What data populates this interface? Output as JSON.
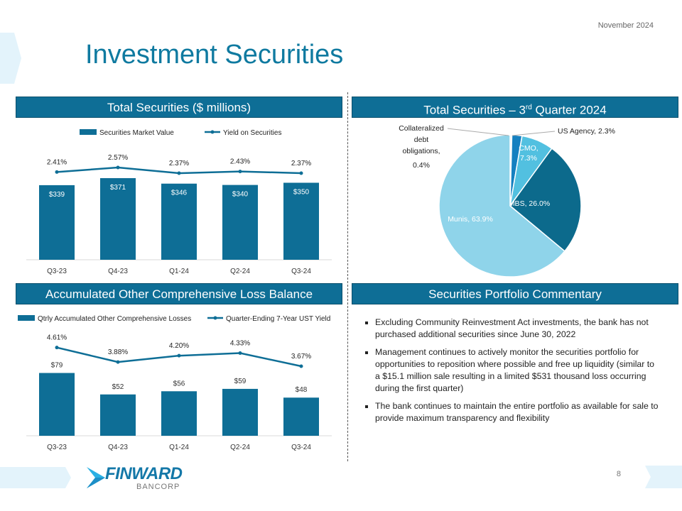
{
  "header": {
    "title": "Investment Securities",
    "date": "November 2024"
  },
  "panels": {
    "total_securities": "Total Securities ($ millions)",
    "pie_title_pre": "Total Securities – 3",
    "pie_title_sup": "rd",
    "pie_title_post": " Quarter 2024",
    "aocl": "Accumulated Other Comprehensive Loss Balance",
    "commentary": "Securities Portfolio Commentary"
  },
  "commentary": [
    "Excluding Community Reinvestment Act investments, the bank has not purchased additional securities since June 30, 2022",
    "Management continues to actively monitor the securities portfolio for opportunities to reposition where possible and free up liquidity (similar to a $15.1 million sale resulting in a limited $531 thousand loss occurring during the first quarter)",
    "The bank continues to maintain the entire portfolio as available for sale to provide maximum transparency and flexibility"
  ],
  "footer": {
    "logo": "FINWARD",
    "logo_sub": "BANCORP",
    "page": "8"
  },
  "chart_data": [
    {
      "type": "bar+line",
      "categories": [
        "Q3-23",
        "Q4-23",
        "Q1-24",
        "Q2-24",
        "Q3-24"
      ],
      "series": [
        {
          "name": "Securities Market Value",
          "type": "bar",
          "values": [
            339,
            371,
            346,
            340,
            350
          ],
          "labels": [
            "$339",
            "$371",
            "$346",
            "$340",
            "$350"
          ],
          "color": "#0e6e96"
        },
        {
          "name": "Yield on Securities",
          "type": "line",
          "values": [
            2.41,
            2.57,
            2.37,
            2.43,
            2.37
          ],
          "labels": [
            "2.41%",
            "2.57%",
            "2.37%",
            "2.43%",
            "2.37%"
          ],
          "color": "#0e6e96"
        }
      ],
      "legend": "top"
    },
    {
      "type": "pie",
      "title": "Total Securities – 3rd Quarter 2024",
      "slices": [
        {
          "label": "Collateralized debt obligations, 0.4%",
          "value": 0.4,
          "color": "#d4ecf5"
        },
        {
          "label": "US Agency, 2.3%",
          "value": 2.3,
          "color": "#1580c0"
        },
        {
          "label": "CMO, 7.3%",
          "value": 7.3,
          "color": "#52c0e0"
        },
        {
          "label": "MBS, 26.0%",
          "value": 26.0,
          "color": "#0c6a8c"
        },
        {
          "label": "Munis, 63.9%",
          "value": 63.9,
          "color": "#8fd4ea"
        }
      ]
    },
    {
      "type": "bar+line",
      "categories": [
        "Q3-23",
        "Q4-23",
        "Q1-24",
        "Q2-24",
        "Q3-24"
      ],
      "series": [
        {
          "name": "Qtrly Accumulated Other Comprehensive Losses",
          "type": "bar",
          "values": [
            79,
            52,
            56,
            59,
            48
          ],
          "labels": [
            "$79",
            "$52",
            "$56",
            "$59",
            "$48"
          ],
          "color": "#0e6e96"
        },
        {
          "name": "Quarter-Ending 7-Year UST Yield",
          "type": "line",
          "values": [
            4.61,
            3.88,
            4.2,
            4.33,
            3.67
          ],
          "labels": [
            "4.61%",
            "3.88%",
            "4.20%",
            "4.33%",
            "3.67%"
          ],
          "color": "#0e6e96"
        }
      ],
      "legend": "top"
    }
  ]
}
